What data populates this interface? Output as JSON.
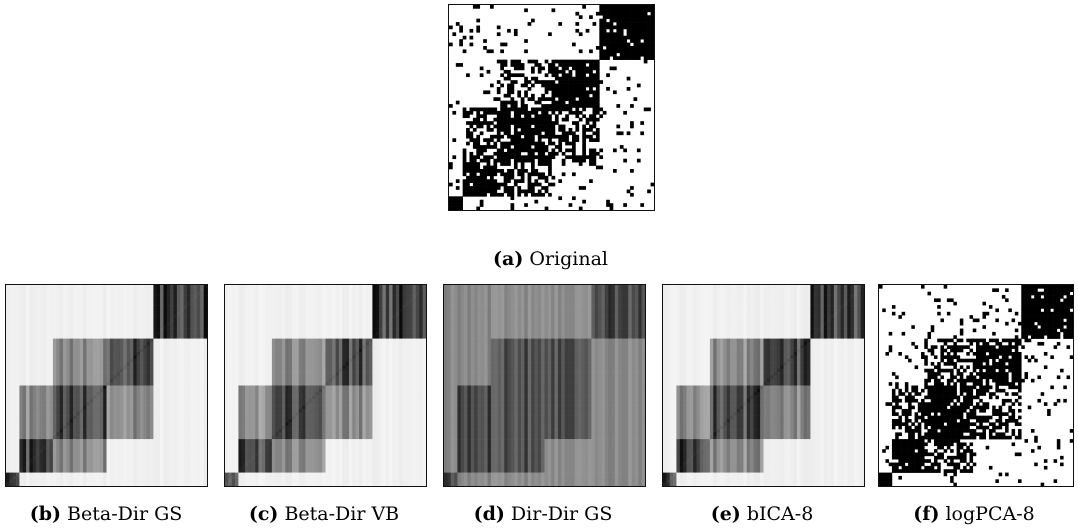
{
  "figure": {
    "panels": [
      {
        "id": "a",
        "label": "(a)",
        "name": "Original"
      },
      {
        "id": "b",
        "label": "(b)",
        "name": "Beta-Dir GS"
      },
      {
        "id": "c",
        "label": "(c)",
        "name": "Beta-Dir VB"
      },
      {
        "id": "d",
        "label": "(d)",
        "name": "Dir-Dir GS"
      },
      {
        "id": "e",
        "label": "(e)",
        "name": "bICA-8"
      },
      {
        "id": "f",
        "label": "(f)",
        "name": "logPCA-8"
      }
    ]
  }
}
